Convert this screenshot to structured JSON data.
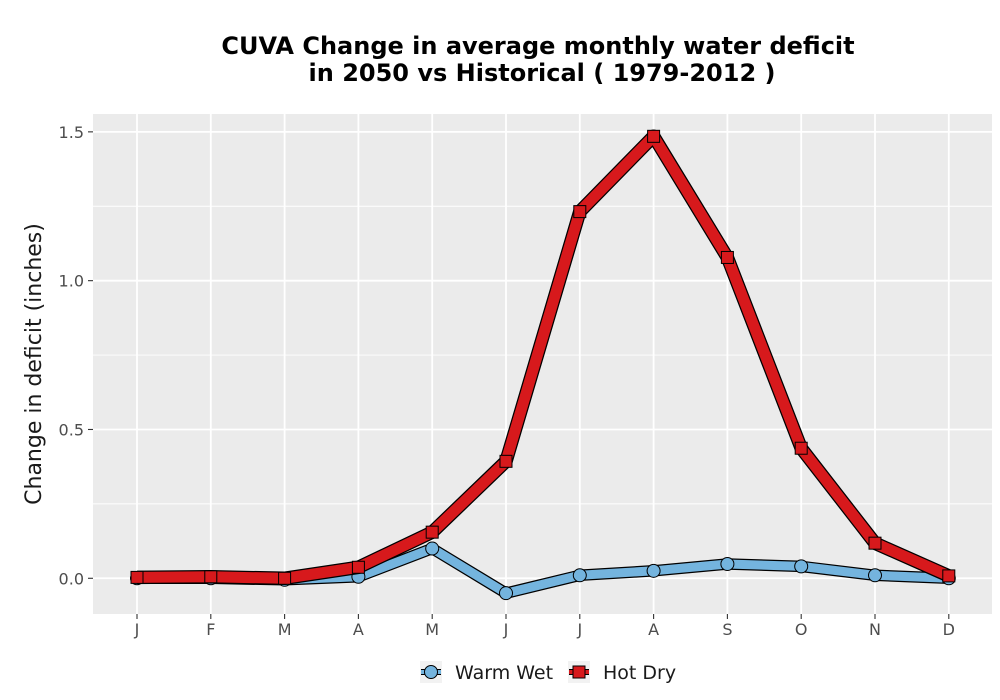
{
  "chart_data": {
    "type": "line",
    "title_line1": "CUVA  Change in average monthly water deficit",
    "title_line2": "in 2050 vs Historical ( 1979-2012 )",
    "xlabel": "",
    "ylabel": "Change in deficit (inches)",
    "categories": [
      "J",
      "F",
      "M",
      "A",
      "M",
      "J",
      "J",
      "A",
      "S",
      "O",
      "N",
      "D"
    ],
    "ylim": [
      -0.12,
      1.56
    ],
    "yticks": [
      0.0,
      0.5,
      1.0,
      1.5
    ],
    "ytick_labels": [
      "0.0",
      "0.5",
      "1.0",
      "1.5"
    ],
    "grid": true,
    "legend_position": "bottom",
    "series": [
      {
        "name": "Warm Wet",
        "marker": "circle",
        "color": "#74b4de",
        "values": [
          0.0,
          0.0,
          -0.005,
          0.005,
          0.1,
          -0.05,
          0.01,
          0.025,
          0.048,
          0.04,
          0.01,
          0.0
        ]
      },
      {
        "name": "Hot Dry",
        "marker": "square",
        "color": "#d7191c",
        "values": [
          0.003,
          0.005,
          0.0,
          0.037,
          0.155,
          0.393,
          1.232,
          1.485,
          1.078,
          0.437,
          0.118,
          0.008
        ]
      }
    ],
    "colors": {
      "panel": "#ebebeb",
      "grid_major": "#ffffff",
      "outline": "#000000"
    }
  }
}
